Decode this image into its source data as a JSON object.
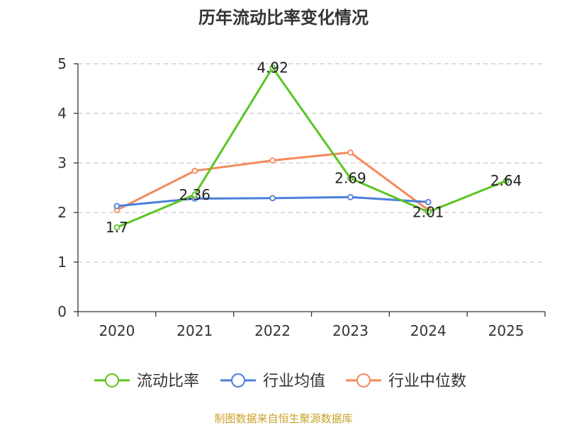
{
  "chart_data": {
    "type": "line",
    "title": "历年流动比率变化情况",
    "categories": [
      "2020",
      "2021",
      "2022",
      "2023",
      "2024",
      "2025"
    ],
    "ylim": [
      0,
      5
    ],
    "yticks": [
      "0",
      "1",
      "2",
      "3",
      "4",
      "5"
    ],
    "grid": true,
    "legend_position": "bottom",
    "series": [
      {
        "name": "流动比率",
        "color": "#5cc522",
        "values": [
          1.7,
          2.36,
          4.92,
          2.69,
          2.01,
          2.64
        ],
        "labels": [
          "1.7",
          "2.36",
          "4.92",
          "2.69",
          "2.01",
          "2.64"
        ]
      },
      {
        "name": "行业均值",
        "color": "#4a7fdc",
        "values": [
          2.13,
          2.28,
          2.29,
          2.31,
          2.21,
          null
        ]
      },
      {
        "name": "行业中位数",
        "color": "#f5895a",
        "values": [
          2.05,
          2.84,
          3.05,
          3.21,
          2.05,
          null
        ]
      }
    ]
  },
  "source": "制图数据来自恒生聚源数据库"
}
